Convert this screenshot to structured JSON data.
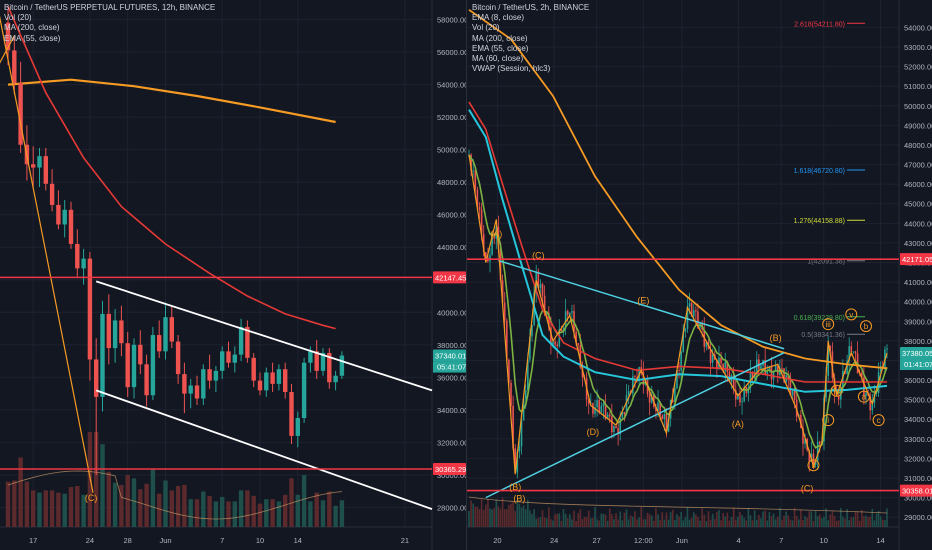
{
  "colors": {
    "bg": "#131722",
    "grid": "#1e2230",
    "axis_text": "#b2b5be",
    "up": "#26a69a",
    "down": "#ef5350",
    "vol_up": "#1f4f4b",
    "vol_down": "#5c2a2c",
    "ma200": "#f59a23",
    "ema55": "#e53935",
    "pattern": "#f59a23",
    "channel": "#ffffff",
    "triangle": "#4dd0e1",
    "hline": "#f23645",
    "ema8": "#7cb342",
    "ma60": "#26c6da"
  },
  "left": {
    "legend": [
      "Bitcoin / TetherUS PERPETUAL FUTURES, 12h, BINANCE",
      "Vol (20)",
      "MA (200, close)",
      "EMA (55, close)"
    ],
    "chart_data": {
      "type": "candlestick",
      "symbol": "Bitcoin / TetherUS PERPETUAL FUTURES",
      "interval": "12h",
      "exchange": "BINANCE",
      "x_tick_labels": [
        "17",
        "24",
        "28",
        "Jun",
        "7",
        "10",
        "14",
        "21"
      ],
      "y_tick_labels": [
        58000,
        56000,
        54000,
        52000,
        50000,
        48000,
        46000,
        44000,
        42000,
        40000,
        38000,
        36000,
        34000,
        32000,
        30000,
        28000
      ],
      "ylim": [
        26800,
        59200
      ],
      "price_labels": {
        "current": "37340.01",
        "countdown": "05:41:07",
        "hline_upper": "42147.45",
        "hline_lower": "30365.29"
      },
      "horizontal_lines": [
        42147.45,
        30365.29
      ],
      "wave_labels": [
        "(C)"
      ],
      "candles": [
        [
          57800,
          58600,
          55200,
          56100
        ],
        [
          56100,
          56900,
          53400,
          54100
        ],
        [
          54100,
          55400,
          49800,
          50300
        ],
        [
          50300,
          51500,
          48100,
          49100
        ],
        [
          49100,
          50200,
          47600,
          48900
        ],
        [
          48900,
          50100,
          47700,
          49600
        ],
        [
          49600,
          50100,
          47500,
          47900
        ],
        [
          47900,
          48800,
          46200,
          46600
        ],
        [
          46600,
          47500,
          45100,
          45400
        ],
        [
          45400,
          46900,
          44600,
          46300
        ],
        [
          46300,
          46800,
          43900,
          44200
        ],
        [
          44200,
          45100,
          42100,
          42700
        ],
        [
          42700,
          43900,
          41700,
          43300
        ],
        [
          43300,
          43700,
          35800,
          37100
        ],
        [
          37100,
          38400,
          30000,
          34800
        ],
        [
          34800,
          40700,
          33900,
          39900
        ],
        [
          39900,
          41100,
          36800,
          37800
        ],
        [
          37800,
          40200,
          36900,
          39500
        ],
        [
          39500,
          40400,
          37300,
          38100
        ],
        [
          38100,
          38800,
          34800,
          35400
        ],
        [
          35400,
          38400,
          34700,
          38000
        ],
        [
          38000,
          38900,
          36200,
          36800
        ],
        [
          36800,
          37400,
          34200,
          34900
        ],
        [
          34900,
          39100,
          34600,
          38600
        ],
        [
          38600,
          39500,
          37200,
          37600
        ],
        [
          37600,
          40600,
          37100,
          39700
        ],
        [
          39700,
          40400,
          37800,
          38200
        ],
        [
          38200,
          38600,
          35600,
          36200
        ],
        [
          36200,
          36900,
          33800,
          35000
        ],
        [
          35000,
          35900,
          34100,
          35500
        ],
        [
          35500,
          36100,
          34300,
          34700
        ],
        [
          34700,
          36800,
          34300,
          36500
        ],
        [
          36500,
          37400,
          35300,
          35800
        ],
        [
          35800,
          36700,
          35100,
          36400
        ],
        [
          36400,
          37900,
          35900,
          37600
        ],
        [
          37600,
          38200,
          36600,
          36900
        ],
        [
          36900,
          37900,
          36300,
          37400
        ],
        [
          37400,
          39600,
          37000,
          39100
        ],
        [
          39100,
          39500,
          36900,
          37200
        ],
        [
          37200,
          37500,
          35400,
          35800
        ],
        [
          35800,
          36300,
          34900,
          35200
        ],
        [
          35200,
          36600,
          34800,
          36300
        ],
        [
          36300,
          36900,
          35100,
          35600
        ],
        [
          35600,
          36800,
          35200,
          36500
        ],
        [
          36500,
          36900,
          34700,
          35100
        ],
        [
          35100,
          35600,
          31900,
          32400
        ],
        [
          32400,
          33900,
          31700,
          33500
        ],
        [
          33500,
          37200,
          33200,
          36900
        ],
        [
          36900,
          37900,
          36300,
          37600
        ],
        [
          37600,
          38300,
          35900,
          36400
        ],
        [
          36400,
          37800,
          36100,
          37500
        ],
        [
          37500,
          37800,
          35300,
          35700
        ],
        [
          35700,
          36400,
          35200,
          36100
        ],
        [
          36100,
          37600,
          35900,
          37340
        ]
      ],
      "ma200": [
        [
          0,
          54000
        ],
        [
          10,
          54300
        ],
        [
          20,
          53900
        ],
        [
          30,
          53300
        ],
        [
          40,
          52600
        ],
        [
          52,
          51700
        ]
      ],
      "ema55": [
        [
          0,
          58800
        ],
        [
          6,
          53500
        ],
        [
          12,
          49500
        ],
        [
          18,
          46500
        ],
        [
          25,
          44200
        ],
        [
          32,
          42400
        ],
        [
          38,
          41000
        ],
        [
          44,
          39900
        ],
        [
          50,
          39200
        ],
        [
          52,
          39000
        ]
      ]
    }
  },
  "right": {
    "legend": [
      "Bitcoin / TetherUS, 2h, BINANCE",
      "EMA (8, close)",
      "Vol (20)",
      "MA (200, close)",
      "EMA (55, close)",
      "MA (60, close)",
      "VWAP (Session, hlc3)"
    ],
    "chart_data": {
      "type": "candlestick",
      "symbol": "Bitcoin / TetherUS",
      "interval": "2h",
      "exchange": "BINANCE",
      "x_tick_labels": [
        "20",
        "24",
        "27",
        "12:00",
        "Jun",
        "4",
        "7",
        "10",
        "14"
      ],
      "y_tick_labels": [
        54000,
        53000,
        52000,
        51000,
        50000,
        49000,
        48000,
        47000,
        46000,
        45000,
        44000,
        43000,
        42000,
        41000,
        40000,
        39000,
        38000,
        37000,
        36000,
        35000,
        34000,
        33000,
        32000,
        31000,
        30000,
        29000
      ],
      "ylim": [
        28500,
        55400
      ],
      "price_labels": {
        "current": "37380.05",
        "countdown": "01:41:07",
        "hline_upper": "42171.05",
        "hline_lower": "30358.01"
      },
      "horizontal_lines": [
        42171.05,
        30358.01
      ],
      "fibonacci": [
        {
          "label": "2.618(54211.80)",
          "price": 54211.8,
          "color": "#f23645"
        },
        {
          "label": "1.618(46720.80)",
          "price": 46720.8,
          "color": "#2196f3"
        },
        {
          "label": "1.276(44158.88)",
          "price": 44158.88,
          "color": "#cddc39"
        },
        {
          "label": "1(42091.38)",
          "price": 42091.38,
          "color": "#787b86"
        },
        {
          "label": "0.618(39229.80)",
          "price": 39229.8,
          "color": "#4caf50"
        },
        {
          "label": "0.5(38341.36)",
          "price": 38341.36,
          "color": "#787b86"
        }
      ],
      "wave_labels": [
        "(A)",
        "(B)",
        "(C)",
        "(D)",
        "(E)",
        "(B)",
        "(A)",
        "(B)",
        "(C)",
        "i",
        "ii",
        "iii",
        "iv",
        "v",
        "a",
        "b",
        "c"
      ],
      "ma200": [
        [
          0,
          54900
        ],
        [
          20,
          53400
        ],
        [
          40,
          50500
        ],
        [
          60,
          46400
        ],
        [
          80,
          43300
        ],
        [
          100,
          40600
        ],
        [
          120,
          38800
        ],
        [
          140,
          37700
        ],
        [
          160,
          37100
        ],
        [
          180,
          36800
        ],
        [
          199,
          36600
        ]
      ],
      "ema55": [
        [
          0,
          50200
        ],
        [
          8,
          48800
        ],
        [
          16,
          46000
        ],
        [
          25,
          42900
        ],
        [
          35,
          39600
        ],
        [
          45,
          37900
        ],
        [
          60,
          37100
        ],
        [
          80,
          36500
        ],
        [
          100,
          36700
        ],
        [
          120,
          36600
        ],
        [
          140,
          36300
        ],
        [
          160,
          35900
        ],
        [
          180,
          35900
        ],
        [
          199,
          35900
        ]
      ],
      "ma60": [
        [
          0,
          49800
        ],
        [
          8,
          48400
        ],
        [
          16,
          45200
        ],
        [
          25,
          41900
        ],
        [
          35,
          38300
        ],
        [
          45,
          37200
        ],
        [
          60,
          36400
        ],
        [
          80,
          36000
        ],
        [
          100,
          36300
        ],
        [
          120,
          36200
        ],
        [
          140,
          35800
        ],
        [
          160,
          35400
        ],
        [
          180,
          35500
        ],
        [
          199,
          35700
        ]
      ],
      "zigzag": [
        [
          0,
          47500
        ],
        [
          8,
          42000
        ],
        [
          13,
          44200
        ],
        [
          22,
          31200
        ],
        [
          32,
          41100
        ],
        [
          40,
          38000
        ],
        [
          48,
          39300
        ],
        [
          58,
          34700
        ],
        [
          70,
          33700
        ],
        [
          82,
          36500
        ],
        [
          94,
          33300
        ],
        [
          104,
          39700
        ],
        [
          118,
          37000
        ],
        [
          128,
          35200
        ],
        [
          138,
          36500
        ],
        [
          147,
          36800
        ],
        [
          156,
          34500
        ],
        [
          164,
          31600
        ],
        [
          168,
          32800
        ],
        [
          171,
          38000
        ],
        [
          175,
          35200
        ],
        [
          182,
          37400
        ],
        [
          192,
          34800
        ],
        [
          199,
          37380
        ]
      ]
    }
  }
}
